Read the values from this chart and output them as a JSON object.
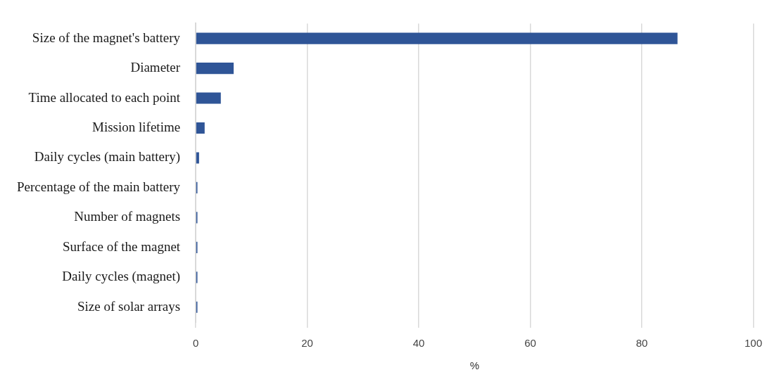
{
  "chart_data": {
    "type": "bar",
    "orientation": "horizontal",
    "xlabel": "%",
    "categories": [
      "Size of the magnet's battery",
      "Diameter",
      "Time allocated to each point",
      "Mission lifetime",
      "Daily cycles (main battery)",
      "Percentage of the main battery",
      "Number of magnets",
      "Surface of the magnet",
      "Daily cycles (magnet)",
      "Size of solar arrays"
    ],
    "values": [
      86.4,
      6.8,
      4.5,
      1.6,
      0.6,
      0.3,
      0.3,
      0.3,
      0.3,
      0.3
    ],
    "color": "#2f5597",
    "xlim": [
      0,
      100
    ],
    "xticks": [
      0,
      20,
      40,
      60,
      80,
      100
    ],
    "grid": "x",
    "legend": false
  }
}
